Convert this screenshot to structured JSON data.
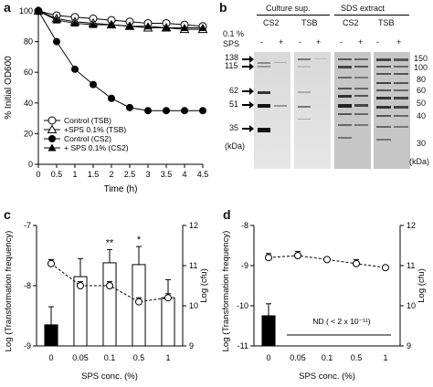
{
  "panels": {
    "a": {
      "letter": "a"
    },
    "b": {
      "letter": "b",
      "group_left": "Culture sup.",
      "group_right": "SDS extract",
      "lanes": [
        "CS2",
        "TSB",
        "CS2",
        "TSB"
      ],
      "sps_line1": "0.1 %",
      "sps_line2": "SPS",
      "signs": [
        "-",
        "+",
        "-",
        "+",
        "-",
        "+",
        "-",
        "+"
      ],
      "markers_left": [
        "138",
        "115",
        "62",
        "51",
        "35"
      ],
      "kda_left": "(kDa)",
      "markers_right": [
        "150",
        "100",
        "80",
        "60",
        "50",
        "40",
        "30"
      ],
      "kda_right": "(kDa)"
    },
    "c": {
      "letter": "c"
    },
    "d": {
      "letter": "d"
    }
  },
  "chart_data": [
    {
      "type": "line",
      "panel": "a",
      "title": "",
      "xlabel": "Time (h)",
      "ylabel": "% Initial OD600",
      "xlim": [
        0,
        4.5
      ],
      "ylim": [
        0,
        100
      ],
      "xticks": [
        "0",
        "0.5",
        "1",
        "1.5",
        "2",
        "2.5",
        "3",
        "3.5",
        "4",
        "4.5"
      ],
      "yticks": [
        "0",
        "20",
        "40",
        "60",
        "80",
        "100"
      ],
      "x": [
        0,
        0.5,
        1,
        1.5,
        2,
        2.5,
        3,
        3.5,
        4,
        4.5
      ],
      "series": [
        {
          "name": "Control (TSB)",
          "marker": "open-circle",
          "values": [
            100,
            97,
            96,
            95,
            94,
            93,
            92,
            92,
            91,
            90
          ]
        },
        {
          "name": "+SPS 0.1% (TSB)",
          "marker": "open-triangle",
          "values": [
            100,
            95,
            93,
            92,
            91,
            90,
            89,
            89,
            88,
            88
          ]
        },
        {
          "name": "Control (CS2)",
          "marker": "filled-circle",
          "values": [
            100,
            80,
            62,
            52,
            43,
            37,
            35,
            35,
            35,
            35
          ]
        },
        {
          "name": "+ SPS 0.1% (CS2)",
          "marker": "filled-triangle",
          "values": [
            100,
            94,
            92,
            91,
            91,
            90,
            90,
            89,
            89,
            89
          ]
        }
      ],
      "legend": "bottom-left"
    },
    {
      "type": "bar",
      "panel": "c",
      "title": "",
      "xlabel": "SPS conc. (%)",
      "ylabel": "Log (Transformation frequency)",
      "ylabel_right": "Log (cfu)",
      "categories": [
        "0",
        "0.05",
        "0.1",
        "0.5",
        "1"
      ],
      "ylim": [
        -9,
        -7
      ],
      "yticks": [
        "-7",
        "-8",
        "-9"
      ],
      "ylim_right": [
        9,
        12
      ],
      "yticks_right": [
        "9",
        "10",
        "11",
        "12"
      ],
      "series": [
        {
          "values": [
            -8.65,
            -7.85,
            -7.62,
            -7.65,
            -8.2
          ],
          "errors": [
            0.3,
            0.3,
            0.22,
            0.3,
            0.3
          ],
          "style": "bars",
          "fills": [
            "#000000",
            "#ffffff",
            "#ffffff",
            "#ffffff",
            "#ffffff"
          ]
        },
        {
          "values": [
            11.05,
            10.5,
            10.5,
            10.1,
            10.2
          ],
          "errors": [
            0.1,
            0.1,
            0.1,
            0.1,
            0.1
          ],
          "style": "dashed-line-open-circles",
          "axis": "right"
        }
      ],
      "annotations": [
        {
          "category": "0.1",
          "text": "**"
        },
        {
          "category": "0.5",
          "text": "*"
        }
      ]
    },
    {
      "type": "bar",
      "panel": "d",
      "title": "",
      "xlabel": "SPS conc. (%)",
      "ylabel": "Log (Transformation frequency)",
      "ylabel_right": "Log (cfu)",
      "categories": [
        "0",
        "0.05",
        "0.1",
        "0.5",
        "1"
      ],
      "ylim": [
        -11,
        -8
      ],
      "yticks": [
        "-8",
        "-9",
        "-10",
        "-11"
      ],
      "ylim_right": [
        9,
        12
      ],
      "yticks_right": [
        "9",
        "10",
        "11",
        "12"
      ],
      "series": [
        {
          "values": [
            -10.25,
            null,
            null,
            null,
            null
          ],
          "errors": [
            0.3,
            null,
            null,
            null,
            null
          ],
          "style": "bars",
          "fills": [
            "#000000"
          ]
        },
        {
          "values": [
            11.2,
            11.25,
            11.15,
            11.05,
            10.95
          ],
          "errors": [
            0.1,
            0.1,
            0.05,
            0.1,
            0.05
          ],
          "style": "dashed-line-open-circles",
          "axis": "right"
        }
      ],
      "annotation": "ND ( < 2 x 10⁻¹¹)"
    }
  ]
}
